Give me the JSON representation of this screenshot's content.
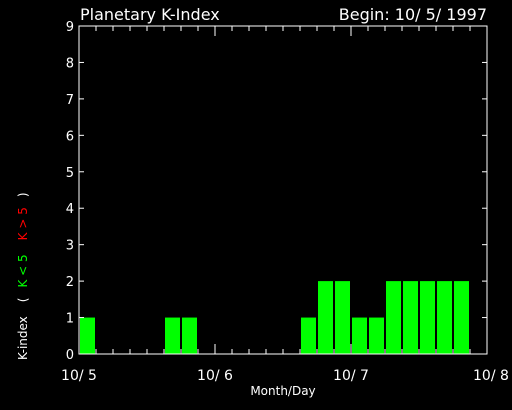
{
  "chart_data": {
    "type": "bar",
    "title": "Planetary K-Index",
    "subtitle": "Begin: 10/ 5/ 1997",
    "xlabel": "Month/Day",
    "ylabel": {
      "main": "K-index",
      "open_paren": "(",
      "low_text": "K < 5",
      "high_text": "K > 5",
      "close_paren": ")"
    },
    "ylim": [
      0,
      9
    ],
    "xlim": [
      0,
      24
    ],
    "x_unit": "3-hour intervals since 10/5 00:00",
    "x_ticks": [
      {
        "x": 0,
        "label": "10/ 5"
      },
      {
        "x": 8,
        "label": "10/ 6"
      },
      {
        "x": 16,
        "label": "10/ 7"
      },
      {
        "x": 24,
        "label": "10/ 8"
      }
    ],
    "y_ticks": [
      0,
      1,
      2,
      3,
      4,
      5,
      6,
      7,
      8,
      9
    ],
    "values": [
      1,
      0,
      0,
      0,
      0,
      1,
      1,
      0,
      0,
      0,
      0,
      0,
      0,
      1,
      2,
      2,
      1,
      1,
      2,
      2,
      2,
      2,
      2,
      0
    ],
    "colors": {
      "background": "#000000",
      "axis": "#ffffff",
      "bar_low": "#00ff00",
      "bar_high": "#ff0000",
      "label_low": "#00ff00",
      "label_high": "#ff0000"
    },
    "grid": false,
    "legend": "none"
  }
}
